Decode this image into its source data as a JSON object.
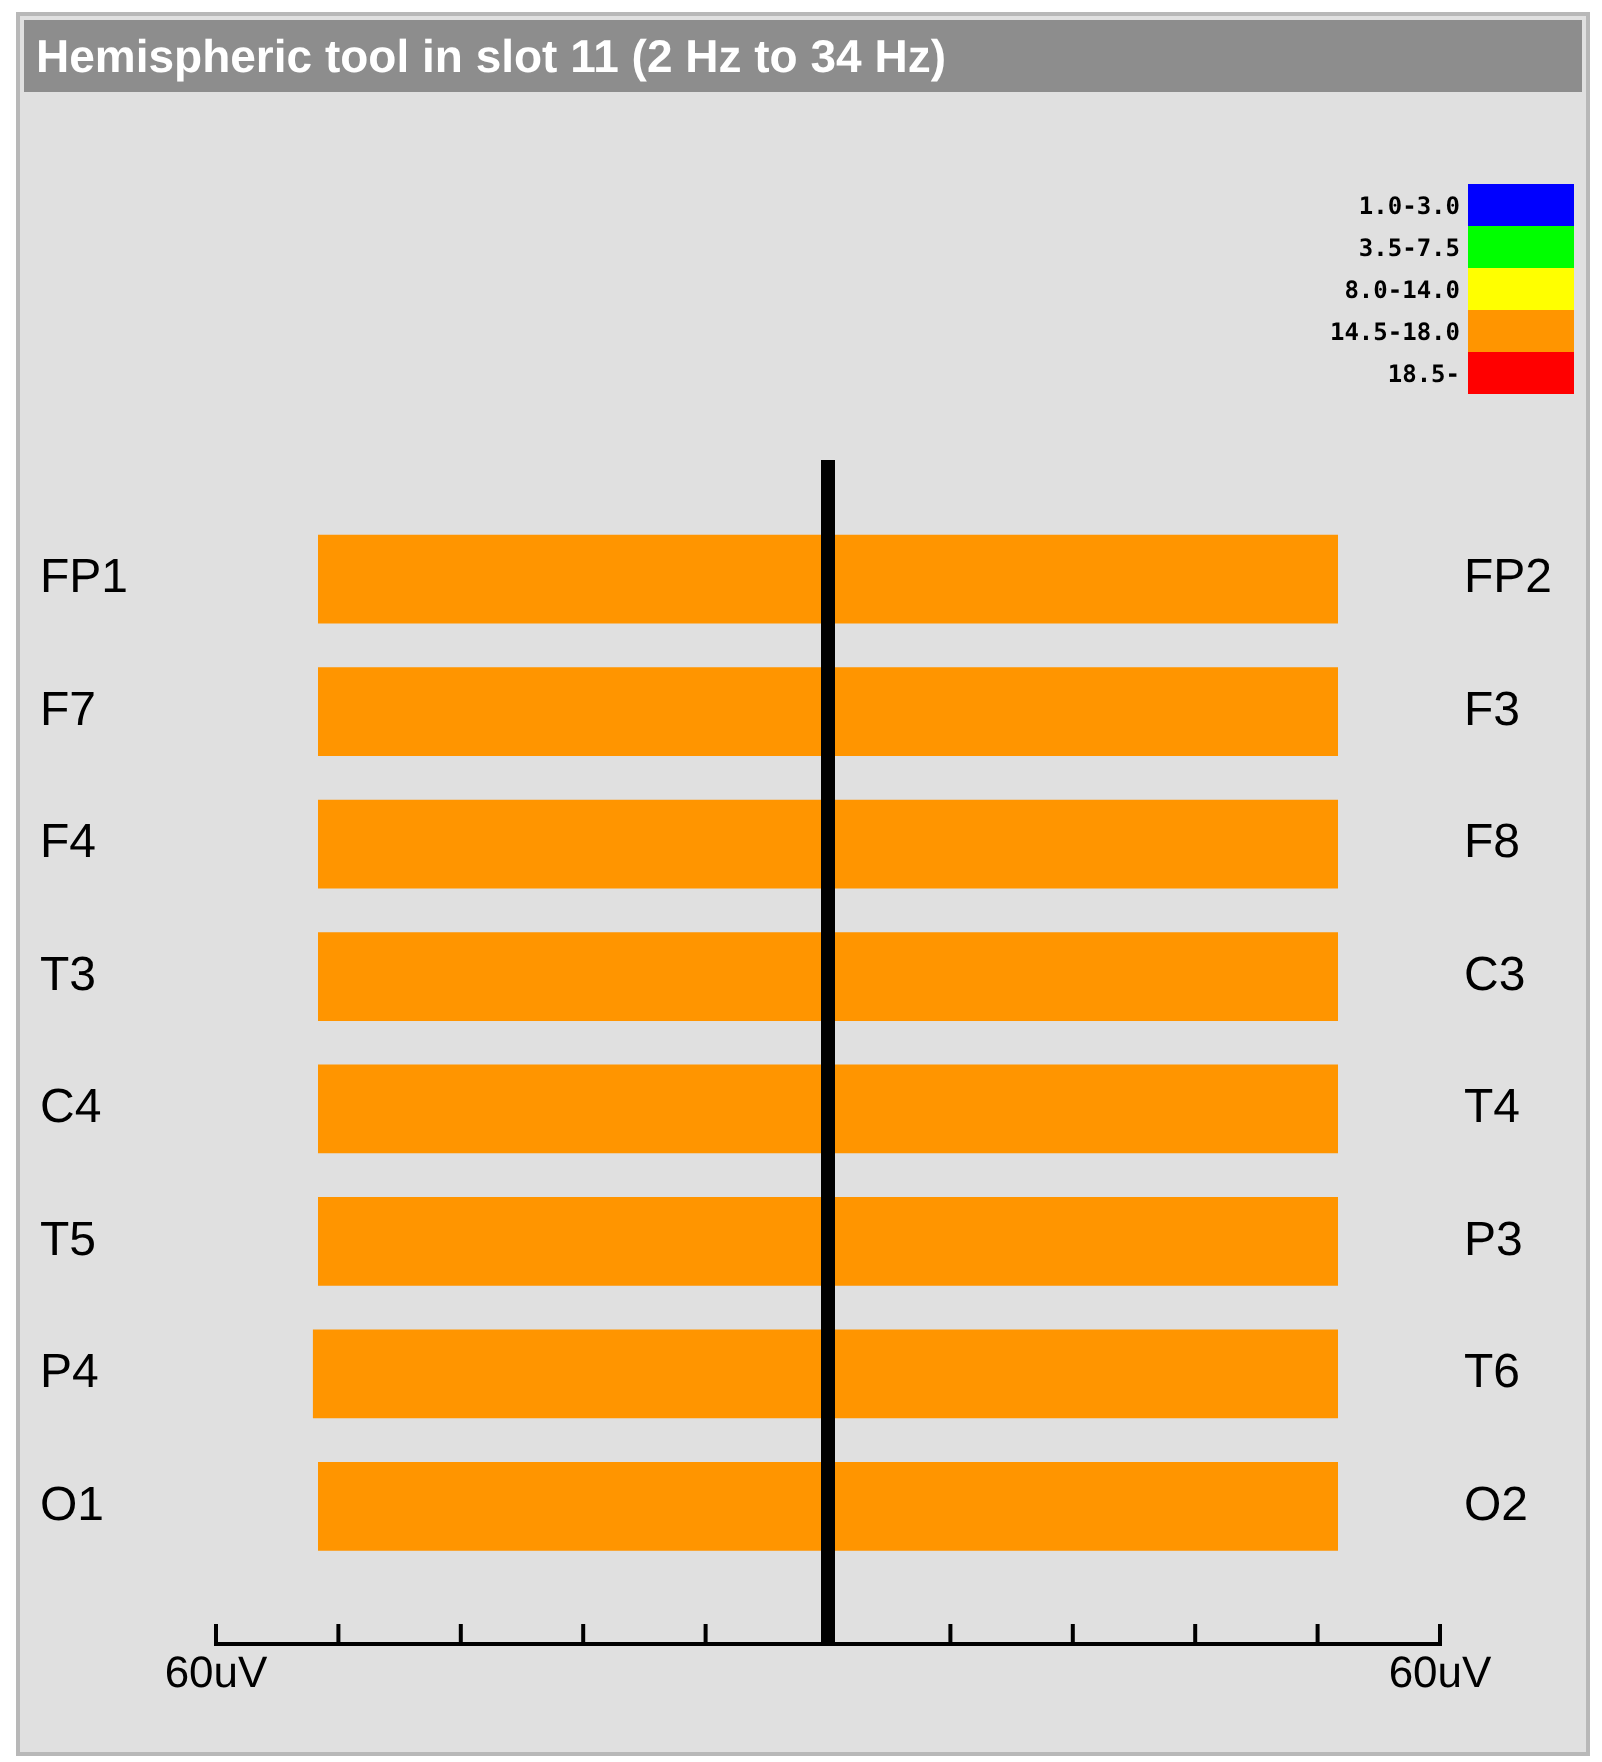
{
  "chart_data": {
    "type": "bar",
    "orientation": "horizontal",
    "stacked": true,
    "title": "Hemispheric tool in slot 11 (2 Hz to 34 Hz)",
    "categories": [
      "FP1",
      "F7",
      "F4",
      "T3",
      "C4",
      "T5",
      "P4",
      "O1"
    ],
    "annotations": [
      "FP2",
      "F3",
      "F8",
      "C3",
      "T4",
      "P3",
      "T6",
      "O2"
    ],
    "series": [
      {
        "name": "1.0-3.0",
        "color": "#0000ff",
        "values": [
          null,
          null,
          null,
          null,
          null,
          null,
          null,
          null
        ]
      },
      {
        "name": "3.5-7.5",
        "color": "#00ff00",
        "values": [
          null,
          null,
          null,
          null,
          null,
          null,
          null,
          null
        ]
      },
      {
        "name": "8.0-14.0",
        "color": "#ffff00",
        "values": [
          null,
          null,
          null,
          null,
          null,
          null,
          null,
          null
        ]
      },
      {
        "name": "14.5-18.0",
        "color": "#ff9500",
        "values": [
          -50,
          -50,
          -50,
          -50,
          -50,
          -50,
          -50.5,
          -50
        ]
      },
      {
        "color": "#ff9500",
        "values": [
          50,
          50,
          50,
          50,
          50,
          50,
          50,
          50
        ]
      },
      {
        "name": "18.5-",
        "color": "#ff0000",
        "values": [
          null,
          null,
          null,
          null,
          null,
          null,
          null,
          null
        ]
      }
    ],
    "xlim": [
      -60,
      60
    ],
    "xticks": [
      {
        "value": -60,
        "label": "60uV"
      },
      {
        "value": -48,
        "label": null
      },
      {
        "value": -36,
        "label": null
      },
      {
        "value": -24,
        "label": null
      },
      {
        "value": -12,
        "label": null
      },
      {
        "value": 0,
        "label": null
      },
      {
        "value": 12,
        "label": null
      },
      {
        "value": 24,
        "label": null
      },
      {
        "value": 36,
        "label": null
      },
      {
        "value": 48,
        "label": null
      },
      {
        "value": 60,
        "label": "60uV"
      }
    ],
    "ref_lines": [
      {
        "axis": "x",
        "value": 0,
        "color": "#000000"
      }
    ],
    "grid": false,
    "legend": "top right"
  }
}
